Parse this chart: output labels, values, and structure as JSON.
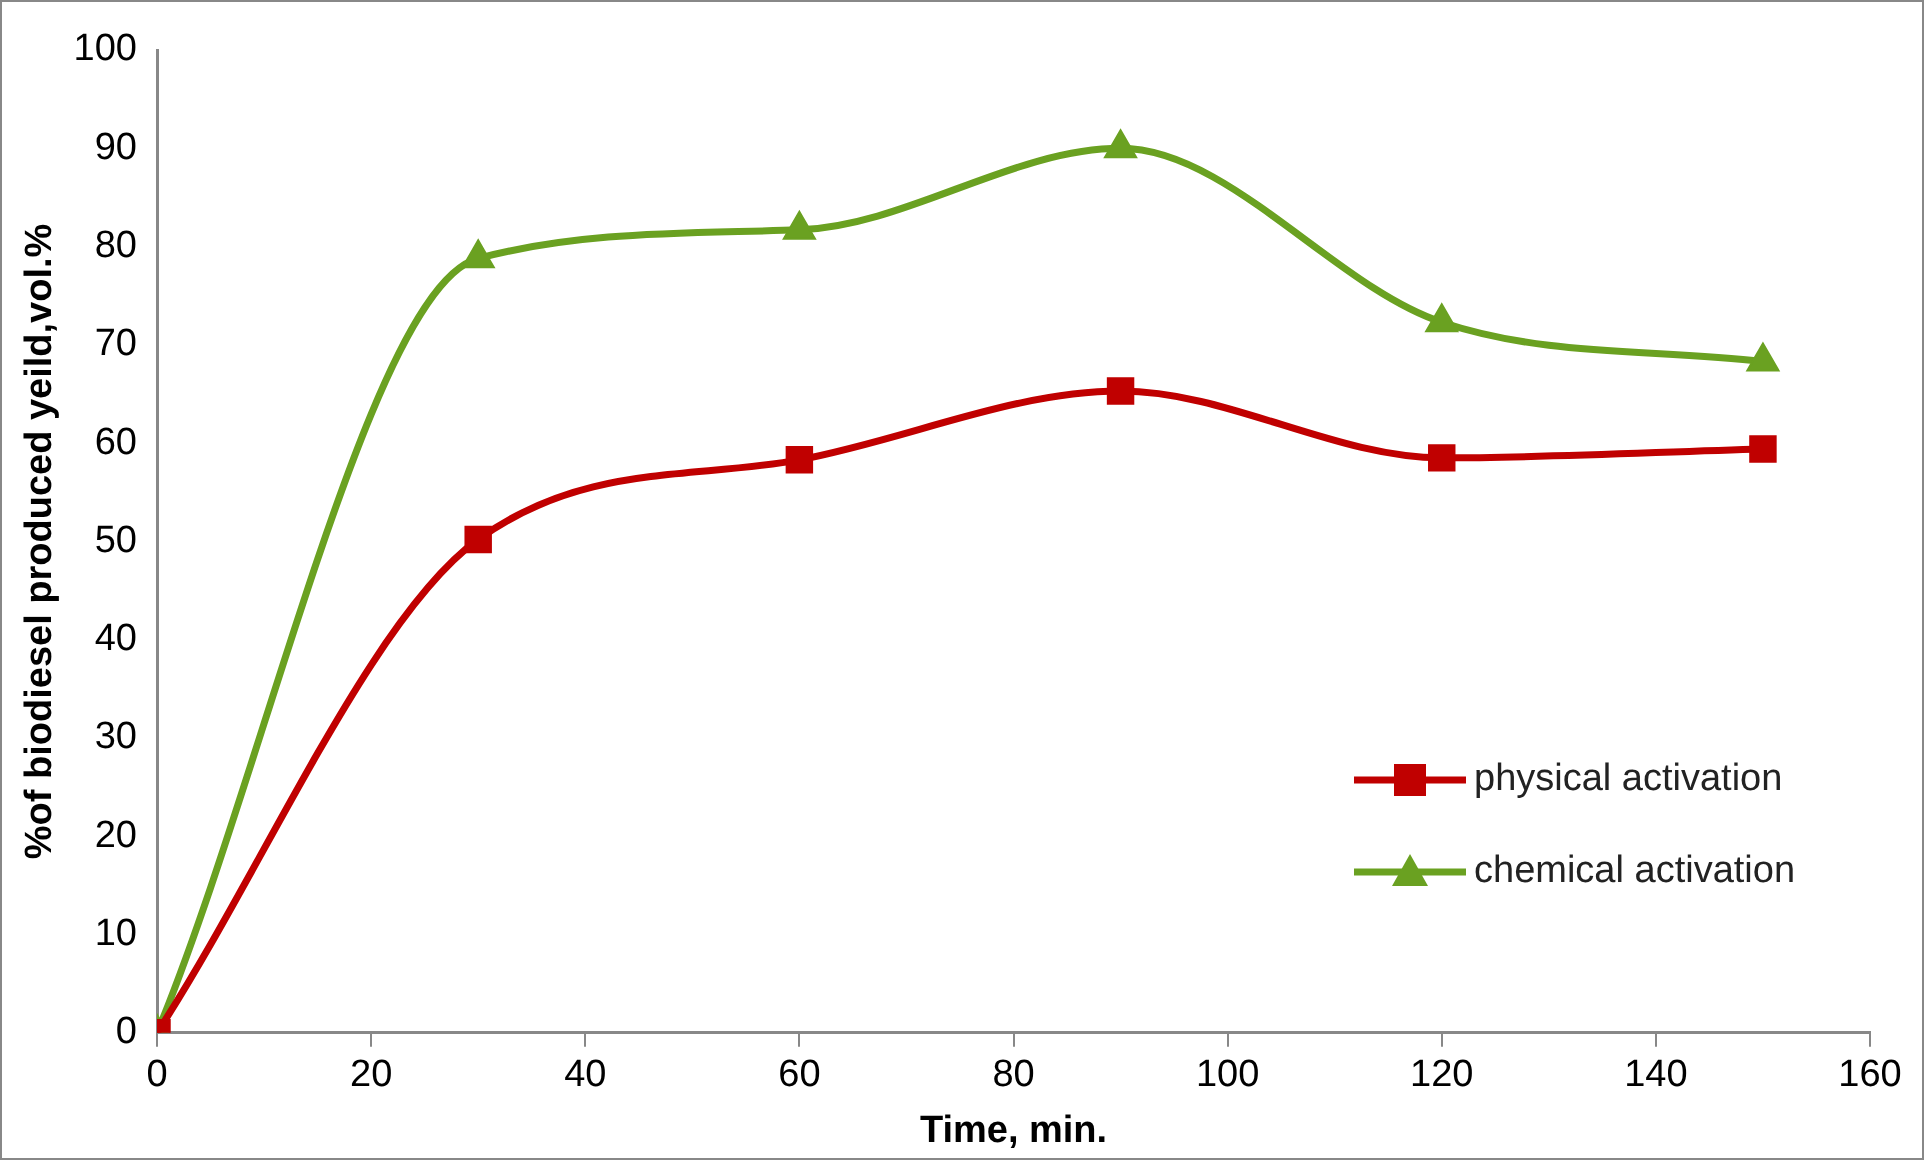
{
  "chart_data": {
    "type": "line",
    "xlabel": "Time, min.",
    "ylabel": "%of biodiesel produced yeild,vol.%",
    "x": [
      0,
      30,
      60,
      90,
      120,
      150
    ],
    "series": [
      {
        "name": "physical activation",
        "color": "#c00000",
        "marker": "square",
        "values": [
          0,
          50.2,
          58.3,
          65.3,
          58.5,
          59.4
        ]
      },
      {
        "name": "chemical activation",
        "color": "#6aa121",
        "marker": "triangle",
        "values": [
          0,
          78.8,
          81.7,
          90.0,
          72.3,
          68.3
        ]
      }
    ],
    "xlim": [
      0,
      160
    ],
    "xticks": [
      0,
      20,
      40,
      60,
      80,
      100,
      120,
      140,
      160
    ],
    "ylim": [
      0,
      100
    ],
    "yticks": [
      0,
      10,
      20,
      30,
      40,
      50,
      60,
      70,
      80,
      90,
      100
    ],
    "grid": false,
    "legend": "right"
  }
}
